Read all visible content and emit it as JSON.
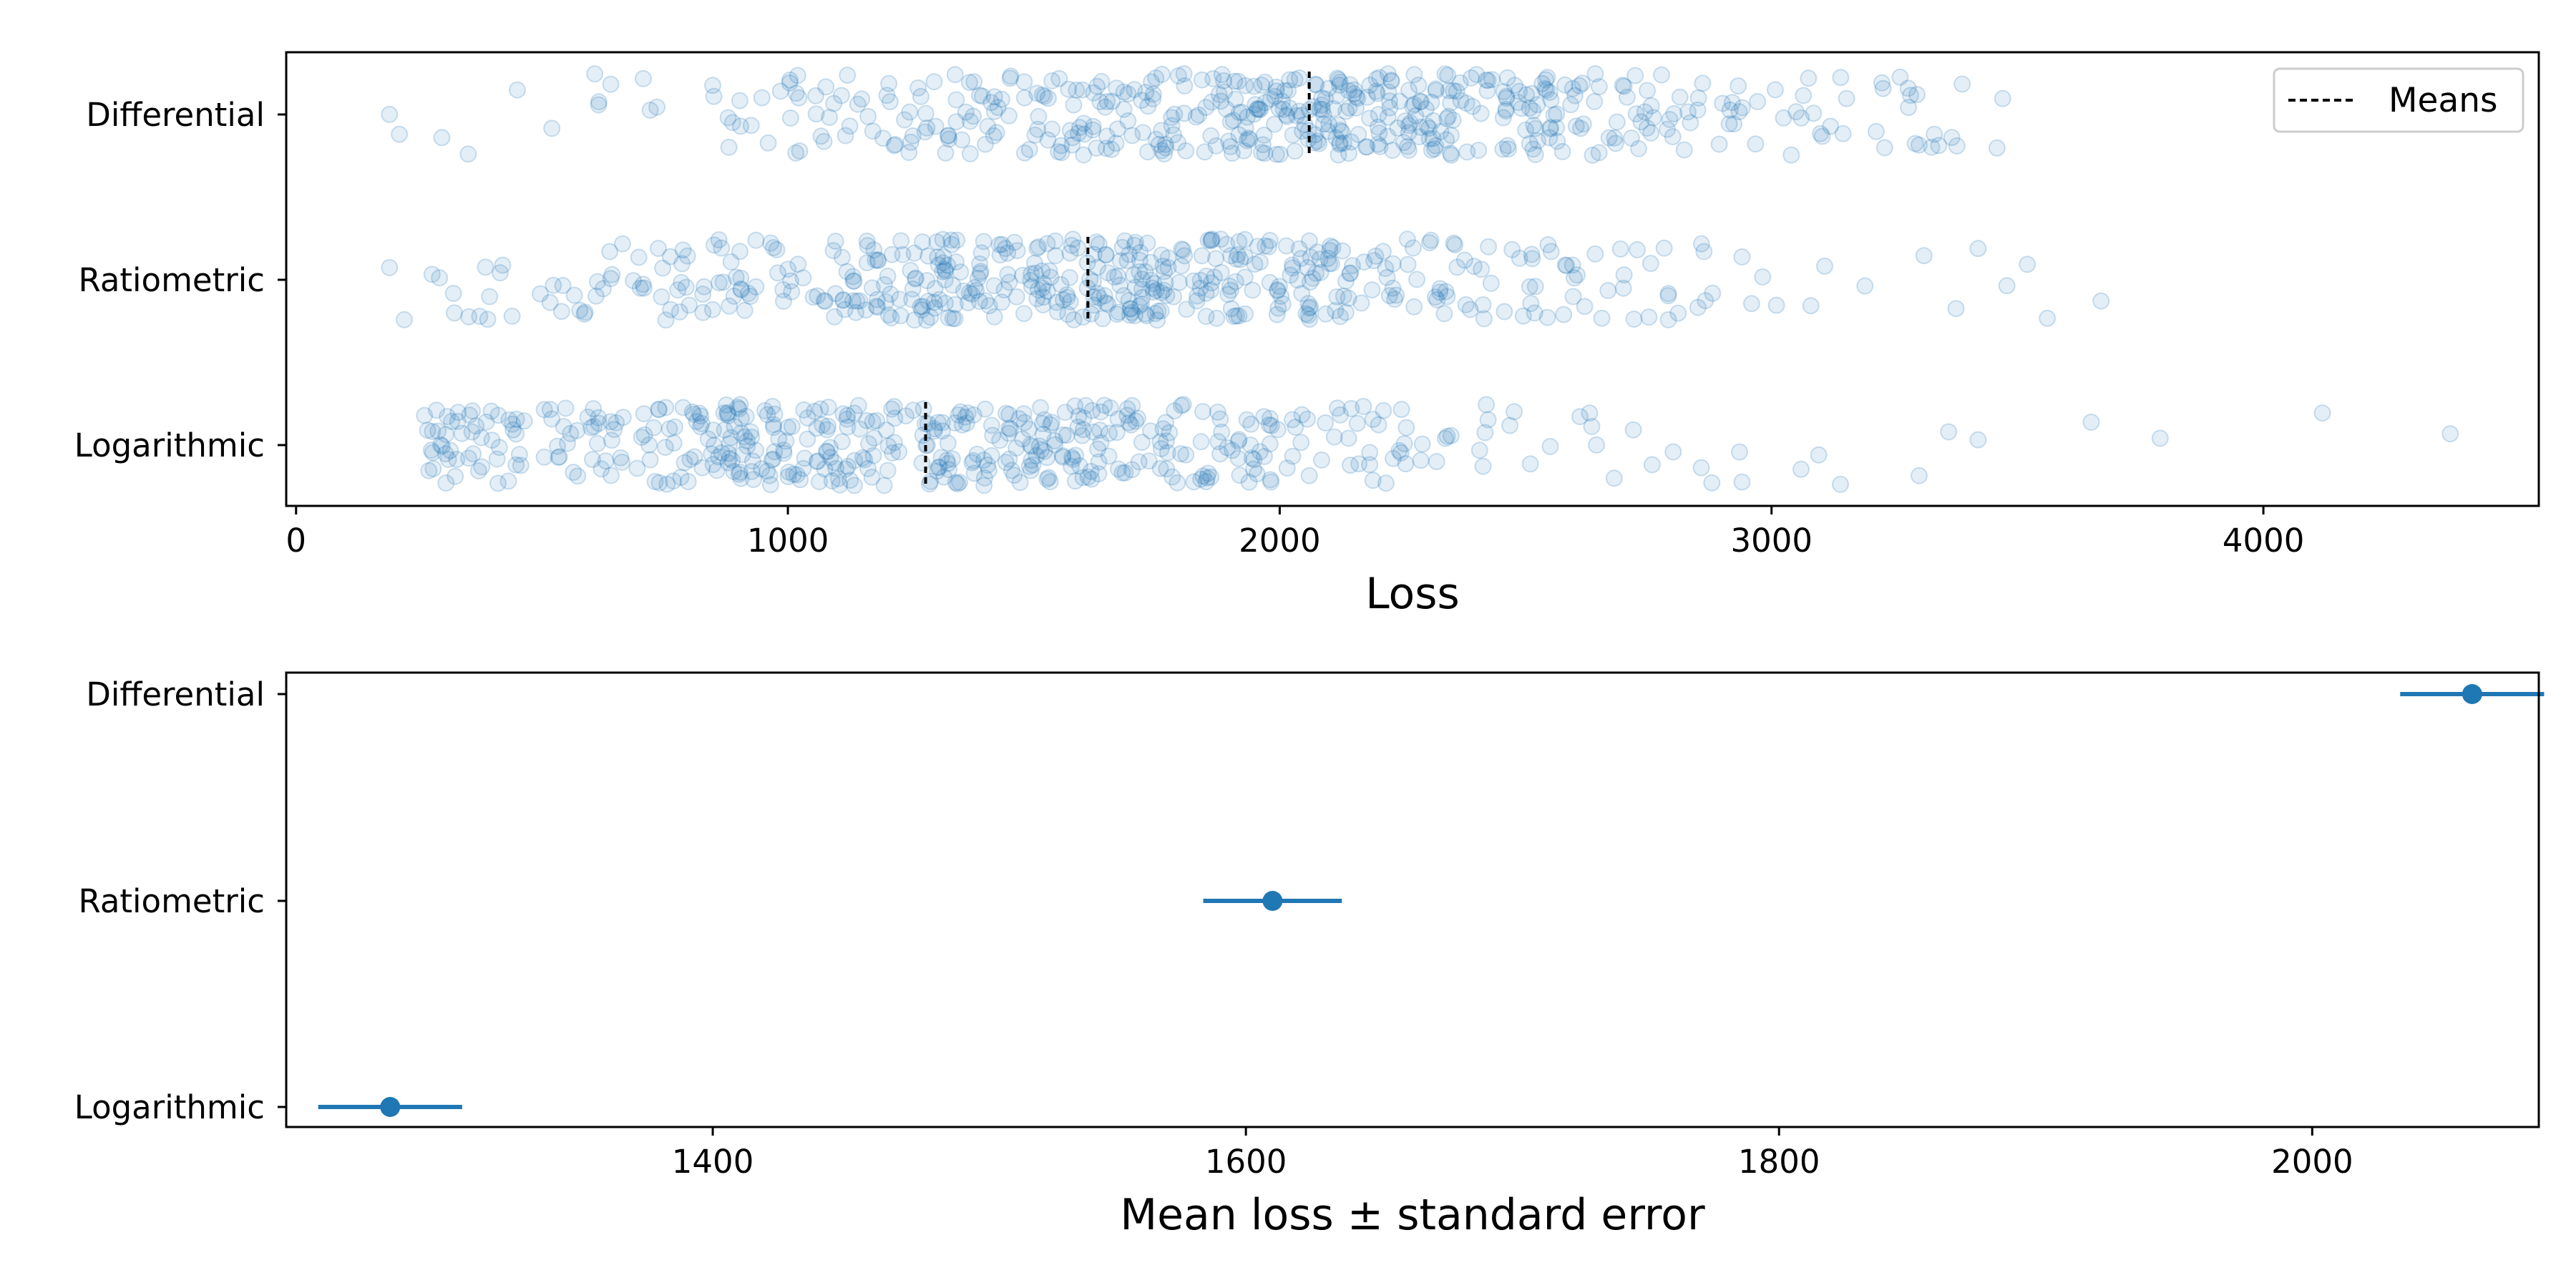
{
  "colors": {
    "points": "#1f77b4",
    "means_line": "#000000",
    "axes": "#000000",
    "background": "#ffffff"
  },
  "chart_data": [
    {
      "type": "scatter",
      "style": "strip plot with jitter, semi-transparent markers",
      "xlabel": "Loss",
      "ylabel": "",
      "xlim": [
        -20,
        4560
      ],
      "x_ticks": [
        "0",
        "1000",
        "2000",
        "3000",
        "4000"
      ],
      "categories": [
        "Differential",
        "Ratiometric",
        "Logarithmic"
      ],
      "legend": {
        "position": "top-right",
        "entries": [
          {
            "label": "Means",
            "style": "dashed black line"
          }
        ]
      },
      "grid": false,
      "n_points_per_category_estimate": 500,
      "series": [
        {
          "category": "Differential",
          "mean": 2060,
          "std": 600,
          "min": 180,
          "max": 3470,
          "sample_x": [
            190,
            210,
            350,
            450,
            520,
            640,
            720,
            880,
            960,
            1020,
            1150,
            1250,
            1340,
            1420,
            1550,
            1620,
            1700,
            1780,
            1850,
            1900,
            1930,
            1960,
            1990,
            2010,
            2040,
            2070,
            2100,
            2130,
            2160,
            2200,
            2240,
            2270,
            2300,
            2340,
            2380,
            2420,
            2460,
            2520,
            2580,
            2640,
            2700,
            2760,
            2850,
            2920,
            3050,
            3120,
            3230,
            3300,
            3340,
            3470
          ]
        },
        {
          "category": "Ratiometric",
          "mean": 1610,
          "std": 580,
          "min": 180,
          "max": 3670,
          "sample_x": [
            190,
            220,
            320,
            420,
            540,
            610,
            700,
            780,
            850,
            920,
            990,
            1060,
            1120,
            1180,
            1230,
            1290,
            1340,
            1390,
            1440,
            1480,
            1520,
            1560,
            1600,
            1640,
            1680,
            1720,
            1760,
            1800,
            1860,
            1920,
            1980,
            2060,
            2140,
            2230,
            2320,
            2410,
            2520,
            2620,
            2700,
            2790,
            2880,
            2940,
            3010,
            3080,
            3190,
            3310,
            3420,
            3520,
            3670
          ]
        },
        {
          "category": "Logarithmic",
          "mean": 1280,
          "std": 610,
          "min": 260,
          "max": 4380,
          "sample_x": [
            270,
            360,
            440,
            520,
            600,
            660,
            720,
            770,
            810,
            850,
            890,
            930,
            970,
            1000,
            1040,
            1080,
            1120,
            1160,
            1200,
            1240,
            1290,
            1340,
            1400,
            1460,
            1530,
            1600,
            1680,
            1770,
            1860,
            1960,
            2060,
            2170,
            2290,
            2420,
            2550,
            2680,
            2800,
            2940,
            3060,
            3140,
            3300,
            3360,
            3420,
            3650,
            3790,
            4120,
            4380
          ]
        }
      ]
    },
    {
      "type": "scatter",
      "style": "point with horizontal error bar",
      "xlabel": "Mean loss ± standard error",
      "ylabel": "",
      "xlim": [
        1240,
        2085
      ],
      "x_ticks": [
        "1400",
        "1600",
        "1800",
        "2000"
      ],
      "categories": [
        "Differential",
        "Ratiometric",
        "Logarithmic"
      ],
      "grid": false,
      "series": [
        {
          "category": "Differential",
          "mean": 2060,
          "se_low": 2033,
          "se_high": 2087
        },
        {
          "category": "Ratiometric",
          "mean": 1610,
          "se_low": 1584,
          "se_high": 1636
        },
        {
          "category": "Logarithmic",
          "mean": 1279,
          "se_low": 1252,
          "se_high": 1306
        }
      ]
    }
  ]
}
